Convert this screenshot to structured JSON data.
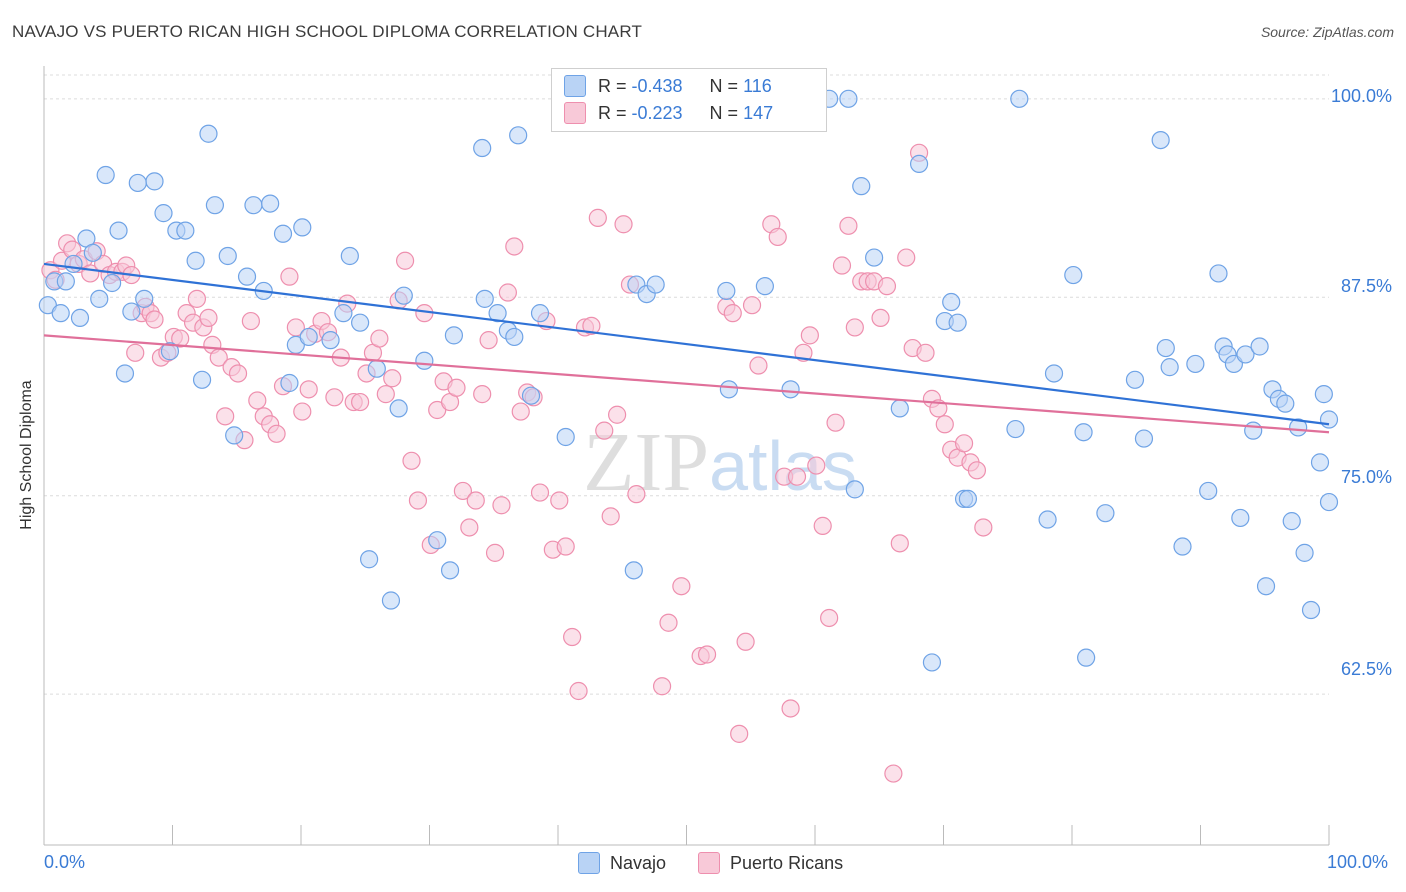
{
  "title": "NAVAJO VS PUERTO RICAN HIGH SCHOOL DIPLOMA CORRELATION CHART",
  "source": "Source: ZipAtlas.com",
  "watermark": "ZIPatlas",
  "stats": {
    "row1": {
      "r_label": "R =",
      "r_value": "-0.438",
      "n_label": "N =",
      "n_value": "116"
    },
    "row2": {
      "r_label": "R =",
      "r_value": "-0.223",
      "n_label": "N =",
      "n_value": "147"
    }
  },
  "legend": {
    "navajo": "Navajo",
    "puerto": "Puerto Ricans"
  },
  "colors": {
    "navajo": "#6fa3e6",
    "navajo_fill": "#b9d3f5",
    "puerto": "#ee8fae",
    "puerto_fill": "#f8c9d8",
    "navajo_line": "#2f72d6",
    "puerto_line": "#e0709a",
    "accent_text": "#3a7bd5"
  },
  "chart_data": {
    "type": "scatter",
    "title": "NAVAJO VS PUERTO RICAN HIGH SCHOOL DIPLOMA CORRELATION CHART",
    "xlabel": "",
    "ylabel": "High School Diploma",
    "xlim": [
      0,
      100
    ],
    "ylim": [
      53,
      101.5
    ],
    "x_tick_labels": [
      "0.0%",
      "100.0%"
    ],
    "y_tick_labels": [
      "62.5%",
      "75.0%",
      "87.5%",
      "100.0%"
    ],
    "y_ticks": [
      62.5,
      75.0,
      87.5,
      100.0
    ],
    "grid": true,
    "legend_position": "bottom",
    "series": [
      {
        "name": "Navajo",
        "r": -0.438,
        "n": 116,
        "trend": {
          "x": [
            0,
            100
          ],
          "y": [
            89.6,
            79.5
          ]
        },
        "points": [
          [
            0.3,
            87.0
          ],
          [
            0.8,
            88.5
          ],
          [
            1.3,
            86.5
          ],
          [
            1.7,
            88.5
          ],
          [
            2.3,
            89.6
          ],
          [
            2.8,
            86.2
          ],
          [
            3.3,
            91.2
          ],
          [
            3.8,
            90.3
          ],
          [
            4.3,
            87.4
          ],
          [
            4.8,
            95.2
          ],
          [
            5.3,
            88.4
          ],
          [
            5.8,
            91.7
          ],
          [
            6.3,
            82.7
          ],
          [
            6.8,
            86.6
          ],
          [
            7.3,
            94.7
          ],
          [
            7.8,
            87.4
          ],
          [
            8.6,
            94.8
          ],
          [
            9.3,
            92.8
          ],
          [
            9.8,
            84.1
          ],
          [
            10.3,
            91.7
          ],
          [
            11.0,
            91.7
          ],
          [
            11.8,
            89.8
          ],
          [
            12.3,
            82.3
          ],
          [
            12.8,
            97.8
          ],
          [
            13.3,
            93.3
          ],
          [
            14.3,
            90.1
          ],
          [
            14.8,
            78.8
          ],
          [
            15.8,
            88.8
          ],
          [
            16.3,
            93.3
          ],
          [
            17.1,
            87.9
          ],
          [
            17.6,
            93.4
          ],
          [
            18.6,
            91.5
          ],
          [
            19.1,
            82.1
          ],
          [
            19.6,
            84.5
          ],
          [
            20.1,
            91.9
          ],
          [
            20.6,
            85.0
          ],
          [
            22.3,
            84.8
          ],
          [
            23.3,
            86.5
          ],
          [
            23.8,
            90.1
          ],
          [
            24.6,
            85.9
          ],
          [
            25.3,
            71.0
          ],
          [
            25.9,
            83.0
          ],
          [
            27.0,
            68.4
          ],
          [
            27.6,
            80.5
          ],
          [
            28.0,
            87.6
          ],
          [
            29.6,
            83.5
          ],
          [
            30.6,
            72.2
          ],
          [
            31.6,
            70.3
          ],
          [
            31.9,
            85.1
          ],
          [
            34.1,
            96.9
          ],
          [
            34.3,
            87.4
          ],
          [
            35.3,
            86.5
          ],
          [
            36.1,
            85.4
          ],
          [
            36.6,
            85.0
          ],
          [
            36.9,
            97.7
          ],
          [
            37.9,
            81.3
          ],
          [
            38.6,
            86.5
          ],
          [
            40.6,
            78.7
          ],
          [
            45.9,
            70.3
          ],
          [
            46.1,
            88.3
          ],
          [
            46.9,
            87.7
          ],
          [
            47.6,
            88.3
          ],
          [
            51.6,
            100.0
          ],
          [
            53.1,
            87.9
          ],
          [
            53.3,
            81.7
          ],
          [
            56.1,
            88.2
          ],
          [
            58.1,
            81.7
          ],
          [
            61.1,
            100.0
          ],
          [
            62.6,
            100.0
          ],
          [
            63.1,
            75.4
          ],
          [
            63.6,
            94.5
          ],
          [
            64.6,
            90.0
          ],
          [
            66.6,
            80.5
          ],
          [
            68.1,
            95.9
          ],
          [
            69.1,
            64.5
          ],
          [
            70.1,
            86.0
          ],
          [
            70.6,
            87.2
          ],
          [
            71.1,
            85.9
          ],
          [
            71.6,
            74.8
          ],
          [
            71.9,
            74.8
          ],
          [
            75.6,
            79.2
          ],
          [
            75.9,
            100.0
          ],
          [
            78.1,
            73.5
          ],
          [
            78.6,
            82.7
          ],
          [
            80.1,
            88.9
          ],
          [
            80.9,
            79.0
          ],
          [
            81.1,
            64.8
          ],
          [
            82.6,
            73.9
          ],
          [
            84.9,
            82.3
          ],
          [
            85.6,
            78.6
          ],
          [
            86.9,
            97.4
          ],
          [
            87.3,
            84.3
          ],
          [
            87.6,
            83.1
          ],
          [
            88.6,
            71.8
          ],
          [
            89.6,
            83.3
          ],
          [
            90.6,
            75.3
          ],
          [
            91.4,
            89.0
          ],
          [
            91.8,
            84.4
          ],
          [
            92.1,
            83.9
          ],
          [
            92.6,
            83.3
          ],
          [
            93.1,
            73.6
          ],
          [
            93.5,
            83.9
          ],
          [
            94.1,
            79.1
          ],
          [
            94.6,
            84.4
          ],
          [
            95.1,
            69.3
          ],
          [
            95.6,
            81.7
          ],
          [
            96.1,
            81.1
          ],
          [
            96.6,
            80.8
          ],
          [
            97.1,
            73.4
          ],
          [
            97.6,
            79.3
          ],
          [
            98.1,
            71.4
          ],
          [
            98.6,
            67.8
          ],
          [
            99.3,
            77.1
          ],
          [
            99.6,
            81.4
          ],
          [
            100.0,
            74.6
          ],
          [
            100.0,
            79.8
          ]
        ]
      },
      {
        "name": "Puerto Ricans",
        "r": -0.223,
        "n": 147,
        "trend": {
          "x": [
            0,
            100
          ],
          "y": [
            85.1,
            79.0
          ]
        },
        "points": [
          [
            0.5,
            89.2
          ],
          [
            0.9,
            88.6
          ],
          [
            1.4,
            89.8
          ],
          [
            1.8,
            90.9
          ],
          [
            2.2,
            90.5
          ],
          [
            2.7,
            89.6
          ],
          [
            3.1,
            89.9
          ],
          [
            3.6,
            89.0
          ],
          [
            4.1,
            90.4
          ],
          [
            4.6,
            89.6
          ],
          [
            5.1,
            88.9
          ],
          [
            5.6,
            89.1
          ],
          [
            6.1,
            89.1
          ],
          [
            6.4,
            89.5
          ],
          [
            6.8,
            88.9
          ],
          [
            7.1,
            84.0
          ],
          [
            7.6,
            86.5
          ],
          [
            7.9,
            86.9
          ],
          [
            8.3,
            86.5
          ],
          [
            8.6,
            86.1
          ],
          [
            9.1,
            83.7
          ],
          [
            9.6,
            84.0
          ],
          [
            10.1,
            85.0
          ],
          [
            10.6,
            84.9
          ],
          [
            11.1,
            86.5
          ],
          [
            11.6,
            85.9
          ],
          [
            11.9,
            87.4
          ],
          [
            12.4,
            85.6
          ],
          [
            12.8,
            86.2
          ],
          [
            13.1,
            84.5
          ],
          [
            13.6,
            83.7
          ],
          [
            14.1,
            80.0
          ],
          [
            14.6,
            83.1
          ],
          [
            15.1,
            82.7
          ],
          [
            15.6,
            78.5
          ],
          [
            16.1,
            86.0
          ],
          [
            16.6,
            81.0
          ],
          [
            17.1,
            80.0
          ],
          [
            17.6,
            79.5
          ],
          [
            18.1,
            78.9
          ],
          [
            18.6,
            81.9
          ],
          [
            19.1,
            88.8
          ],
          [
            19.6,
            85.6
          ],
          [
            20.1,
            80.3
          ],
          [
            20.6,
            81.7
          ],
          [
            21.1,
            85.2
          ],
          [
            21.6,
            86.0
          ],
          [
            22.1,
            85.3
          ],
          [
            22.6,
            81.2
          ],
          [
            23.1,
            83.7
          ],
          [
            23.6,
            87.1
          ],
          [
            24.1,
            80.9
          ],
          [
            24.6,
            80.9
          ],
          [
            25.1,
            82.7
          ],
          [
            25.6,
            84.0
          ],
          [
            26.1,
            84.9
          ],
          [
            26.6,
            81.4
          ],
          [
            27.1,
            82.4
          ],
          [
            27.6,
            87.3
          ],
          [
            28.1,
            89.8
          ],
          [
            28.6,
            77.2
          ],
          [
            29.1,
            74.7
          ],
          [
            29.6,
            86.5
          ],
          [
            30.1,
            71.9
          ],
          [
            30.6,
            80.4
          ],
          [
            31.1,
            82.2
          ],
          [
            31.6,
            80.9
          ],
          [
            32.1,
            81.8
          ],
          [
            32.6,
            75.3
          ],
          [
            33.1,
            73.0
          ],
          [
            33.6,
            74.7
          ],
          [
            34.1,
            81.4
          ],
          [
            34.6,
            84.8
          ],
          [
            35.1,
            71.4
          ],
          [
            35.6,
            74.4
          ],
          [
            36.1,
            87.8
          ],
          [
            36.6,
            90.7
          ],
          [
            37.1,
            80.3
          ],
          [
            37.6,
            81.5
          ],
          [
            38.1,
            81.2
          ],
          [
            38.6,
            75.2
          ],
          [
            39.1,
            86.0
          ],
          [
            39.6,
            71.6
          ],
          [
            40.1,
            74.7
          ],
          [
            40.6,
            71.8
          ],
          [
            41.1,
            66.1
          ],
          [
            41.6,
            62.7
          ],
          [
            42.1,
            85.6
          ],
          [
            42.6,
            85.7
          ],
          [
            43.1,
            92.5
          ],
          [
            43.6,
            79.1
          ],
          [
            44.1,
            73.7
          ],
          [
            44.6,
            80.1
          ],
          [
            45.1,
            92.1
          ],
          [
            45.6,
            88.3
          ],
          [
            46.1,
            75.1
          ],
          [
            46.6,
            99.9
          ],
          [
            47.1,
            100.0
          ],
          [
            48.1,
            63.0
          ],
          [
            48.6,
            67.0
          ],
          [
            49.1,
            100.0
          ],
          [
            49.6,
            69.3
          ],
          [
            50.1,
            100.0
          ],
          [
            51.1,
            64.9
          ],
          [
            51.6,
            65.0
          ],
          [
            52.1,
            100.0
          ],
          [
            52.6,
            100.0
          ],
          [
            53.1,
            86.9
          ],
          [
            53.6,
            86.5
          ],
          [
            54.1,
            60.0
          ],
          [
            54.6,
            65.8
          ],
          [
            55.1,
            87.0
          ],
          [
            55.6,
            83.2
          ],
          [
            56.6,
            92.1
          ],
          [
            57.1,
            91.3
          ],
          [
            57.6,
            76.2
          ],
          [
            58.1,
            61.6
          ],
          [
            58.6,
            76.2
          ],
          [
            59.1,
            84.0
          ],
          [
            59.6,
            85.1
          ],
          [
            60.1,
            76.9
          ],
          [
            60.6,
            73.1
          ],
          [
            61.1,
            67.3
          ],
          [
            61.6,
            79.6
          ],
          [
            62.1,
            89.5
          ],
          [
            62.6,
            92.0
          ],
          [
            63.1,
            85.6
          ],
          [
            63.6,
            88.5
          ],
          [
            64.1,
            88.5
          ],
          [
            64.6,
            88.5
          ],
          [
            65.1,
            86.2
          ],
          [
            65.6,
            88.2
          ],
          [
            66.1,
            57.5
          ],
          [
            66.6,
            72.0
          ],
          [
            67.1,
            90.0
          ],
          [
            67.6,
            84.3
          ],
          [
            68.1,
            96.6
          ],
          [
            68.6,
            84.0
          ],
          [
            69.1,
            81.1
          ],
          [
            69.6,
            80.5
          ],
          [
            70.1,
            79.5
          ],
          [
            70.6,
            77.9
          ],
          [
            71.1,
            77.4
          ],
          [
            71.6,
            78.3
          ],
          [
            72.1,
            77.1
          ],
          [
            72.6,
            76.6
          ],
          [
            73.1,
            73.0
          ]
        ]
      }
    ]
  }
}
